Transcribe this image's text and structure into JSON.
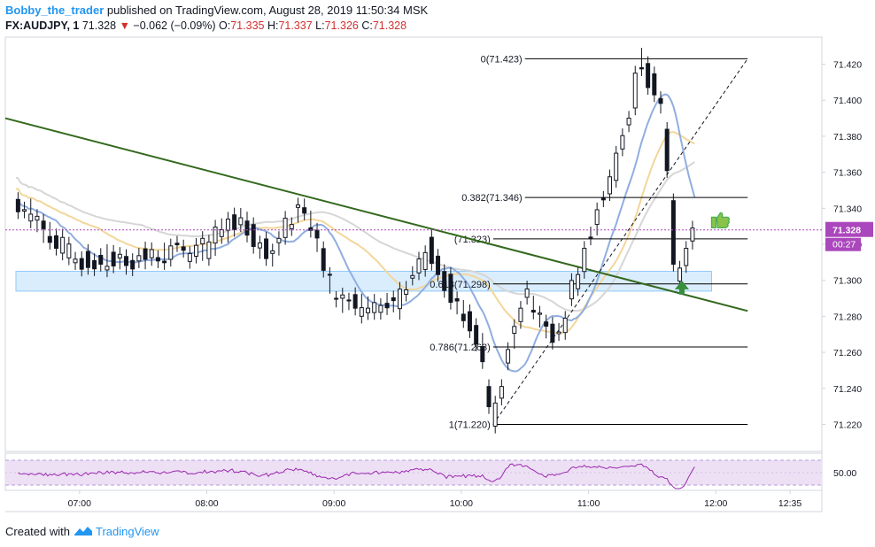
{
  "header": {
    "author": "Bobby_the_trader",
    "published_text": "published on TradingView.com, August 28, 2019 11:50:34 MSK",
    "symbol": "FX:AUDJPY, 1",
    "last_price": "71.328",
    "change_arrow": "▼",
    "change": "−0.062 (−0.09%)",
    "ohlc": {
      "o_label": "O:",
      "o_value": "71.335",
      "h_label": "H:",
      "h_value": "71.337",
      "l_label": "L:",
      "l_value": "71.326",
      "c_label": "C:",
      "c_value": "71.328"
    }
  },
  "footer": {
    "created_with": "Created with",
    "brand": "TradingView"
  },
  "colors": {
    "up_candle": "#ffffff",
    "down_candle": "#131722",
    "candle_wick": "#131722",
    "selected_wick": "#7b1fa2",
    "trendline": "#33691e",
    "fib_line": "#000000",
    "ma_blue": "#90aee0",
    "ma_orange": "#f3d69a",
    "ma_gray": "#d6d6d6",
    "support_zone": "#bbdefb",
    "price_label_bg": "#ab47bc",
    "rsi_line": "#9c27b0",
    "rsi_band": "#ede0f4",
    "thumb_icon": "#4caf50",
    "arrow_icon": "#388e3c"
  },
  "chart_data": {
    "type": "candlestick",
    "price_axis": {
      "ticks": [
        "71.420",
        "71.400",
        "71.380",
        "71.360",
        "71.340",
        "71.320",
        "71.300",
        "71.280",
        "71.260",
        "71.240",
        "71.220"
      ],
      "ylim": [
        71.205,
        71.435
      ],
      "current_price": "71.328",
      "countdown": "00:27"
    },
    "time_axis": {
      "ticks": [
        "07:00",
        "08:00",
        "09:00",
        "10:00",
        "11:00",
        "12:00",
        "12:35"
      ]
    },
    "fibonacci": [
      {
        "label": "0(71.423)",
        "price": 71.423
      },
      {
        "label": "0.382(71.346)",
        "price": 71.346
      },
      {
        "label": "(71.323)",
        "price": 71.323
      },
      {
        "label": "0.618(71.298)",
        "price": 71.298
      },
      {
        "label": "0.786(71.263)",
        "price": 71.263
      },
      {
        "label": "1(71.220)",
        "price": 71.22
      }
    ],
    "trendline": {
      "from": [
        "06:25",
        71.39
      ],
      "to": [
        "12:15",
        71.283
      ]
    },
    "support_zone": {
      "from_price": 71.294,
      "to_price": 71.305
    },
    "key_points": [
      {
        "time": "06:30",
        "price": 71.345
      },
      {
        "time": "07:00",
        "price": 71.31
      },
      {
        "time": "07:30",
        "price": 71.312
      },
      {
        "time": "08:00",
        "price": 71.318
      },
      {
        "time": "08:15",
        "price": 71.335
      },
      {
        "time": "08:30",
        "price": 71.315
      },
      {
        "time": "08:45",
        "price": 71.345
      },
      {
        "time": "09:00",
        "price": 71.295
      },
      {
        "time": "09:15",
        "price": 71.282
      },
      {
        "time": "09:30",
        "price": 71.285
      },
      {
        "time": "09:45",
        "price": 71.318
      },
      {
        "time": "10:10",
        "price": 71.262
      },
      {
        "time": "10:15",
        "price": 71.222
      },
      {
        "time": "10:30",
        "price": 71.295
      },
      {
        "time": "10:45",
        "price": 71.265
      },
      {
        "time": "11:00",
        "price": 71.32
      },
      {
        "time": "11:15",
        "price": 71.37
      },
      {
        "time": "11:25",
        "price": 71.42
      },
      {
        "time": "11:35",
        "price": 71.4
      },
      {
        "time": "11:42",
        "price": 71.3
      },
      {
        "time": "11:50",
        "price": 71.328
      }
    ],
    "rsi": {
      "level_label": "50.00"
    }
  }
}
